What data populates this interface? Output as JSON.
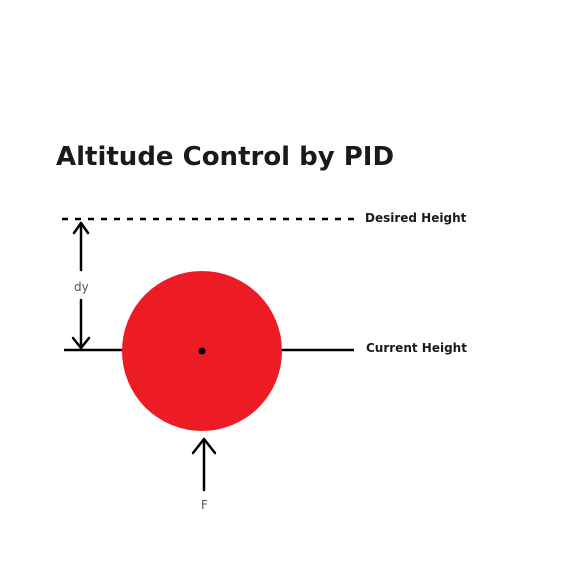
{
  "title": "Altitude Control by PID",
  "labels": {
    "desired_height": "Desired Height",
    "current_height": "Current Height",
    "dy": "dy",
    "force": "F"
  },
  "colors": {
    "ball": "#ed1c24",
    "line": "#000000",
    "text": "#1a1a1a"
  }
}
